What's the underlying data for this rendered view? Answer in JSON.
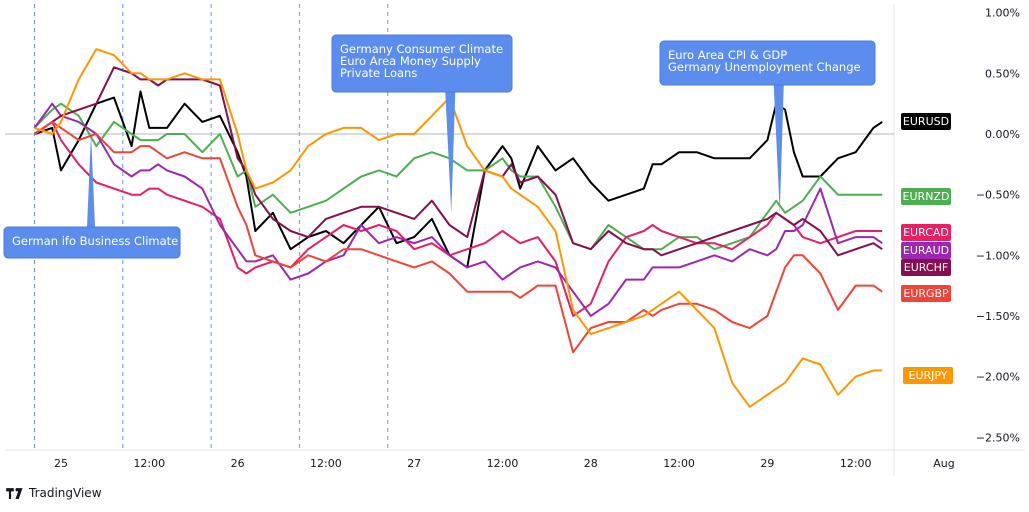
{
  "brand": {
    "name": "TradingView",
    "icon": "tradingview-logo-icon"
  },
  "chart_data": {
    "type": "line",
    "y_unit": "%",
    "ylim": [
      -2.6,
      1.05
    ],
    "y_ticks": [
      "1.00%",
      "0.50%",
      "0.00%",
      "−0.50%",
      "−1.00%",
      "−1.50%",
      "−2.00%",
      "−2.50%"
    ],
    "y_tick_values": [
      1.0,
      0.5,
      0.0,
      -0.5,
      -1.0,
      -1.5,
      -2.0,
      -2.5
    ],
    "x_ticks": [
      "25",
      "12:00",
      "26",
      "12:00",
      "27",
      "12:00",
      "28",
      "12:00",
      "29",
      "12:00",
      "Aug"
    ],
    "x_tick_values": [
      0.0,
      0.5,
      1.0,
      1.5,
      2.0,
      2.5,
      3.0,
      3.5,
      4.0,
      4.5,
      5.0
    ],
    "x_unit": "days since Jul 25 00:00",
    "grid": "horizontal zero line only",
    "session_separators": [
      -0.15,
      0.35,
      0.85,
      1.35,
      1.85
    ],
    "series": [
      {
        "name": "EURUSD",
        "color": "#000000",
        "end_value": 0.1,
        "x": [
          -0.15,
          -0.05,
          0.0,
          0.1,
          0.2,
          0.3,
          0.4,
          0.45,
          0.5,
          0.55,
          0.6,
          0.7,
          0.8,
          0.9,
          1.0,
          1.05,
          1.1,
          1.2,
          1.3,
          1.4,
          1.5,
          1.6,
          1.7,
          1.8,
          1.9,
          2.0,
          2.1,
          2.2,
          2.3,
          2.4,
          2.5,
          2.55,
          2.6,
          2.7,
          2.8,
          2.9,
          3.0,
          3.1,
          3.2,
          3.3,
          3.35,
          3.4,
          3.5,
          3.6,
          3.7,
          3.8,
          3.9,
          4.0,
          4.05,
          4.1,
          4.15,
          4.2,
          4.3,
          4.4,
          4.5,
          4.6,
          4.65
        ],
        "y": [
          0.0,
          0.05,
          -0.3,
          -0.05,
          0.25,
          0.3,
          -0.1,
          0.35,
          0.05,
          0.05,
          0.05,
          0.25,
          0.1,
          0.15,
          -0.15,
          -0.35,
          -0.8,
          -0.65,
          -0.95,
          -0.85,
          -0.8,
          -0.9,
          -0.75,
          -0.6,
          -0.9,
          -0.85,
          -0.7,
          -1.0,
          -1.1,
          -0.3,
          -0.1,
          -0.2,
          -0.45,
          -0.1,
          -0.3,
          -0.2,
          -0.4,
          -0.55,
          -0.5,
          -0.45,
          -0.25,
          -0.25,
          -0.15,
          -0.15,
          -0.2,
          -0.2,
          -0.2,
          -0.05,
          0.25,
          0.2,
          -0.15,
          -0.35,
          -0.35,
          -0.2,
          -0.15,
          0.05,
          0.1
        ]
      },
      {
        "name": "EURNZD",
        "color": "#4caf50",
        "end_value": -0.5,
        "x": [
          -0.15,
          -0.05,
          0.0,
          0.1,
          0.2,
          0.3,
          0.4,
          0.45,
          0.5,
          0.55,
          0.6,
          0.7,
          0.8,
          0.9,
          1.0,
          1.05,
          1.1,
          1.2,
          1.3,
          1.4,
          1.5,
          1.6,
          1.7,
          1.8,
          1.9,
          2.0,
          2.1,
          2.2,
          2.3,
          2.4,
          2.5,
          2.55,
          2.6,
          2.7,
          2.8,
          2.9,
          3.0,
          3.1,
          3.2,
          3.3,
          3.35,
          3.4,
          3.5,
          3.6,
          3.7,
          3.8,
          3.9,
          4.0,
          4.05,
          4.1,
          4.15,
          4.2,
          4.3,
          4.4,
          4.5,
          4.6,
          4.65
        ],
        "y": [
          0.05,
          0.2,
          0.25,
          0.15,
          -0.1,
          0.1,
          0.0,
          -0.05,
          -0.05,
          -0.05,
          0.0,
          0.0,
          -0.15,
          0.0,
          -0.35,
          -0.3,
          -0.6,
          -0.5,
          -0.65,
          -0.6,
          -0.55,
          -0.45,
          -0.35,
          -0.3,
          -0.35,
          -0.2,
          -0.15,
          -0.2,
          -0.3,
          -0.3,
          -0.2,
          -0.3,
          -0.35,
          -0.35,
          -0.6,
          -0.9,
          -0.95,
          -0.75,
          -0.85,
          -0.95,
          -0.95,
          -0.95,
          -0.85,
          -0.85,
          -0.95,
          -0.9,
          -0.85,
          -0.65,
          -0.55,
          -0.65,
          -0.6,
          -0.55,
          -0.35,
          -0.5,
          -0.5,
          -0.5,
          -0.5
        ]
      },
      {
        "name": "EURCAD",
        "color": "#e91e63",
        "end_value": -0.8,
        "x": [
          -0.15,
          -0.05,
          0.0,
          0.1,
          0.2,
          0.3,
          0.4,
          0.45,
          0.5,
          0.55,
          0.6,
          0.7,
          0.8,
          0.9,
          1.0,
          1.05,
          1.1,
          1.2,
          1.3,
          1.4,
          1.5,
          1.6,
          1.7,
          1.8,
          1.9,
          2.0,
          2.1,
          2.2,
          2.3,
          2.4,
          2.5,
          2.55,
          2.6,
          2.7,
          2.8,
          2.9,
          3.0,
          3.1,
          3.2,
          3.3,
          3.35,
          3.4,
          3.5,
          3.6,
          3.7,
          3.8,
          3.9,
          4.0,
          4.05,
          4.1,
          4.15,
          4.2,
          4.3,
          4.4,
          4.5,
          4.6,
          4.65
        ],
        "y": [
          0.0,
          0.1,
          -0.05,
          -0.25,
          -0.4,
          -0.45,
          -0.5,
          -0.5,
          -0.45,
          -0.45,
          -0.5,
          -0.55,
          -0.6,
          -0.7,
          -1.1,
          -1.15,
          -1.1,
          -1.05,
          -1.1,
          -0.95,
          -0.85,
          -0.75,
          -0.8,
          -0.75,
          -0.8,
          -0.95,
          -0.9,
          -1.0,
          -0.95,
          -0.9,
          -0.8,
          -0.85,
          -0.9,
          -0.85,
          -1.05,
          -1.5,
          -1.4,
          -1.05,
          -0.85,
          -0.8,
          -0.75,
          -0.8,
          -0.85,
          -0.9,
          -0.9,
          -0.95,
          -0.85,
          -0.75,
          -0.65,
          -0.7,
          -0.75,
          -0.85,
          -0.9,
          -0.85,
          -0.8,
          -0.8,
          -0.8
        ]
      },
      {
        "name": "EURAUD",
        "color": "#9c27b0",
        "end_value": -0.92,
        "x": [
          -0.15,
          -0.05,
          0.0,
          0.1,
          0.2,
          0.3,
          0.4,
          0.45,
          0.5,
          0.55,
          0.6,
          0.7,
          0.8,
          0.9,
          1.0,
          1.05,
          1.1,
          1.2,
          1.3,
          1.4,
          1.5,
          1.6,
          1.7,
          1.8,
          1.9,
          2.0,
          2.1,
          2.2,
          2.3,
          2.4,
          2.5,
          2.55,
          2.6,
          2.7,
          2.8,
          2.9,
          3.0,
          3.1,
          3.2,
          3.3,
          3.35,
          3.4,
          3.5,
          3.6,
          3.7,
          3.8,
          3.9,
          4.0,
          4.05,
          4.1,
          4.15,
          4.2,
          4.3,
          4.4,
          4.5,
          4.6,
          4.65
        ],
        "y": [
          0.05,
          0.25,
          0.15,
          0.1,
          0.0,
          -0.25,
          -0.35,
          -0.3,
          -0.3,
          -0.25,
          -0.3,
          -0.35,
          -0.45,
          -0.75,
          -0.95,
          -1.05,
          -1.05,
          -1.0,
          -1.2,
          -1.15,
          -1.05,
          -1.0,
          -0.75,
          -0.9,
          -0.85,
          -0.9,
          -0.85,
          -1.0,
          -1.1,
          -1.05,
          -1.2,
          -1.15,
          -1.1,
          -1.05,
          -1.1,
          -1.3,
          -1.5,
          -1.4,
          -1.2,
          -1.2,
          -1.1,
          -1.1,
          -1.1,
          -1.05,
          -1.0,
          -1.05,
          -0.95,
          -1.0,
          -0.95,
          -0.8,
          -0.8,
          -0.75,
          -0.45,
          -0.9,
          -0.85,
          -0.85,
          -0.9
        ]
      },
      {
        "name": "EURCHF",
        "color": "#880e4f",
        "end_value": -0.95,
        "x": [
          -0.15,
          -0.05,
          0.0,
          0.1,
          0.2,
          0.3,
          0.4,
          0.45,
          0.5,
          0.55,
          0.6,
          0.7,
          0.8,
          0.9,
          1.0,
          1.05,
          1.1,
          1.2,
          1.3,
          1.4,
          1.5,
          1.6,
          1.7,
          1.8,
          1.9,
          2.0,
          2.1,
          2.2,
          2.3,
          2.4,
          2.5,
          2.55,
          2.6,
          2.7,
          2.8,
          2.9,
          3.0,
          3.1,
          3.2,
          3.3,
          3.35,
          3.4,
          3.5,
          3.6,
          3.7,
          3.8,
          3.9,
          4.0,
          4.05,
          4.1,
          4.15,
          4.2,
          4.3,
          4.4,
          4.5,
          4.6,
          4.65
        ],
        "y": [
          0.0,
          0.1,
          0.15,
          0.2,
          0.25,
          0.55,
          0.5,
          0.45,
          0.45,
          0.4,
          0.45,
          0.45,
          0.45,
          0.4,
          -0.2,
          -0.3,
          -0.5,
          -0.7,
          -0.8,
          -0.85,
          -0.7,
          -0.65,
          -0.6,
          -0.6,
          -0.65,
          -0.7,
          -0.55,
          -0.75,
          -0.85,
          -0.3,
          -0.35,
          -0.25,
          -0.4,
          -0.35,
          -0.5,
          -0.9,
          -0.95,
          -0.8,
          -0.9,
          -0.95,
          -0.95,
          -1.0,
          -0.95,
          -0.9,
          -0.85,
          -0.8,
          -0.75,
          -0.7,
          -0.65,
          -0.7,
          -0.75,
          -0.7,
          -0.8,
          -1.0,
          -0.95,
          -0.9,
          -0.95
        ]
      },
      {
        "name": "EURGBP",
        "color": "#f44336",
        "end_value": -1.3,
        "x": [
          -0.15,
          -0.05,
          0.0,
          0.1,
          0.2,
          0.3,
          0.4,
          0.45,
          0.5,
          0.55,
          0.6,
          0.7,
          0.8,
          0.9,
          1.0,
          1.05,
          1.1,
          1.2,
          1.3,
          1.4,
          1.5,
          1.6,
          1.7,
          1.8,
          1.9,
          2.0,
          2.1,
          2.2,
          2.3,
          2.4,
          2.5,
          2.55,
          2.6,
          2.7,
          2.8,
          2.9,
          3.0,
          3.1,
          3.2,
          3.3,
          3.35,
          3.4,
          3.5,
          3.6,
          3.7,
          3.8,
          3.9,
          4.0,
          4.05,
          4.1,
          4.15,
          4.2,
          4.3,
          4.4,
          4.5,
          4.6,
          4.65
        ],
        "y": [
          0.0,
          0.1,
          0.05,
          -0.05,
          0.0,
          -0.15,
          -0.15,
          -0.1,
          -0.1,
          -0.15,
          -0.2,
          -0.15,
          -0.2,
          -0.2,
          -0.6,
          -0.75,
          -1.0,
          -1.05,
          -1.1,
          -1.0,
          -1.05,
          -0.95,
          -0.95,
          -1.0,
          -1.05,
          -1.1,
          -1.05,
          -1.15,
          -1.3,
          -1.3,
          -1.3,
          -1.3,
          -1.35,
          -1.25,
          -1.25,
          -1.8,
          -1.6,
          -1.55,
          -1.55,
          -1.45,
          -1.5,
          -1.45,
          -1.4,
          -1.4,
          -1.45,
          -1.55,
          -1.6,
          -1.5,
          -1.3,
          -1.1,
          -1.0,
          -1.0,
          -1.15,
          -1.45,
          -1.25,
          -1.25,
          -1.3
        ]
      },
      {
        "name": "EURJPY",
        "color": "#ff9800",
        "end_value": -1.95,
        "x": [
          -0.15,
          -0.05,
          0.0,
          0.1,
          0.2,
          0.3,
          0.4,
          0.45,
          0.5,
          0.55,
          0.6,
          0.7,
          0.8,
          0.9,
          1.0,
          1.05,
          1.1,
          1.2,
          1.3,
          1.4,
          1.5,
          1.6,
          1.7,
          1.8,
          1.9,
          2.0,
          2.1,
          2.2,
          2.3,
          2.4,
          2.5,
          2.55,
          2.6,
          2.7,
          2.8,
          2.9,
          3.0,
          3.1,
          3.2,
          3.3,
          3.35,
          3.4,
          3.5,
          3.6,
          3.7,
          3.8,
          3.9,
          4.0,
          4.05,
          4.1,
          4.15,
          4.2,
          4.3,
          4.4,
          4.5,
          4.6,
          4.65
        ],
        "y": [
          0.05,
          0.0,
          0.1,
          0.45,
          0.7,
          0.65,
          0.5,
          0.5,
          0.45,
          0.45,
          0.45,
          0.5,
          0.45,
          0.45,
          0.0,
          -0.3,
          -0.45,
          -0.4,
          -0.3,
          -0.1,
          0.0,
          0.05,
          0.05,
          -0.05,
          0.0,
          0.0,
          0.15,
          0.3,
          -0.1,
          -0.3,
          -0.35,
          -0.45,
          -0.5,
          -0.6,
          -0.8,
          -1.45,
          -1.65,
          -1.6,
          -1.55,
          -1.5,
          -1.45,
          -1.4,
          -1.3,
          -1.45,
          -1.6,
          -2.05,
          -2.25,
          -2.15,
          -2.1,
          -2.05,
          -1.95,
          -1.85,
          -1.9,
          -2.15,
          -2.0,
          -1.95,
          -1.95
        ]
      }
    ],
    "annotations": [
      {
        "text": [
          "German ifo Business Climate"
        ],
        "anchor_x": 0.17,
        "anchor_y": 0.0
      },
      {
        "text": [
          "Germany Consumer Climate",
          "Euro Area Money Supply",
          "Private Loans"
        ],
        "anchor_x": 2.21,
        "anchor_y": -0.65
      },
      {
        "text": [
          "Euro Area CPI & GDP",
          "Germany Unemployment Change"
        ],
        "anchor_x": 4.07,
        "anchor_y": -0.65
      }
    ]
  }
}
